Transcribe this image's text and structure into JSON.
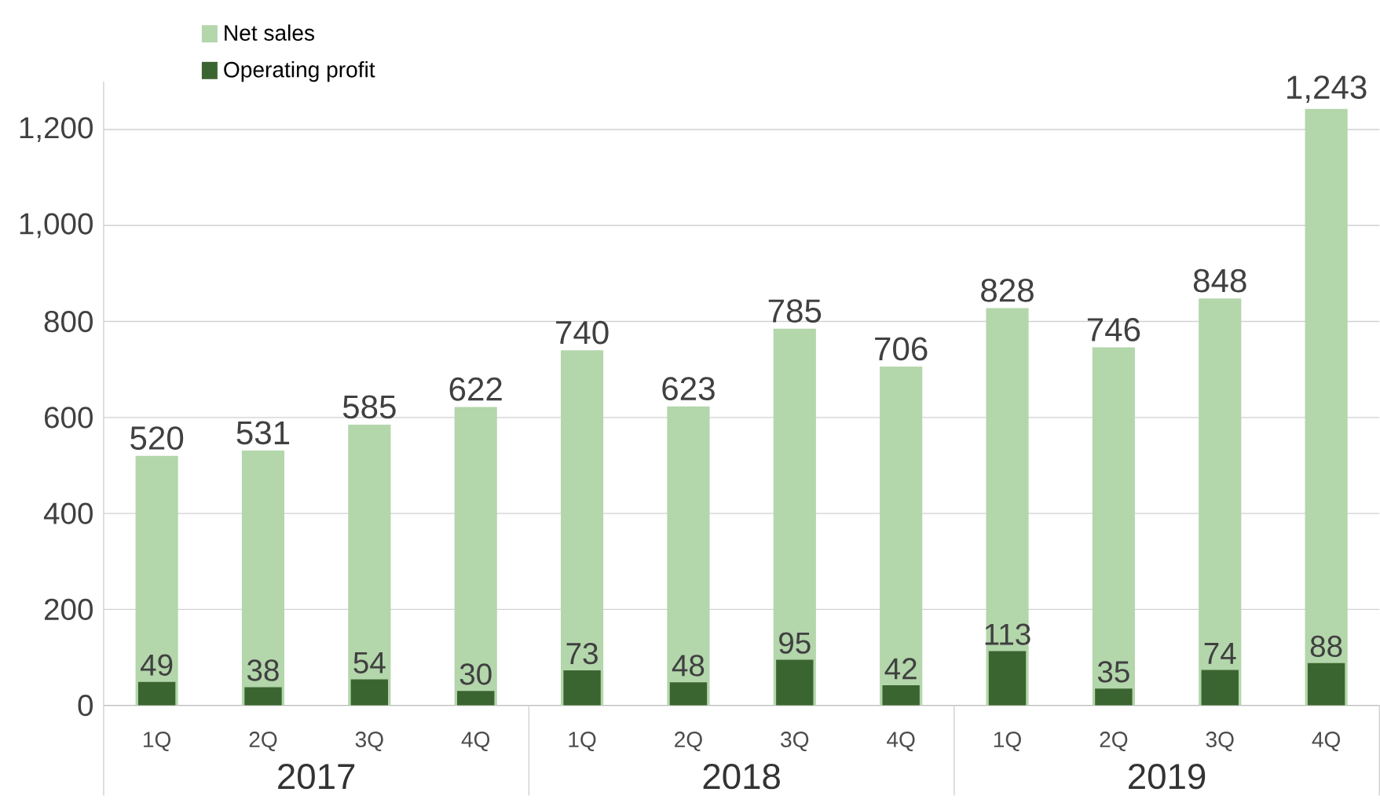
{
  "chart_data": {
    "type": "bar",
    "categories": [
      "1Q",
      "2Q",
      "3Q",
      "4Q",
      "1Q",
      "2Q",
      "3Q",
      "4Q",
      "1Q",
      "2Q",
      "3Q",
      "4Q"
    ],
    "series": [
      {
        "name": "Net sales",
        "color": "#b3d6ab",
        "values": [
          520,
          531,
          585,
          622,
          740,
          623,
          785,
          706,
          828,
          746,
          848,
          1243
        ],
        "value_labels": [
          "520",
          "531",
          "585",
          "622",
          "740",
          "623",
          "785",
          "706",
          "828",
          "746",
          "848",
          "1,243"
        ]
      },
      {
        "name": "Operating profit",
        "color": "#3b6530",
        "values": [
          49,
          38,
          54,
          30,
          73,
          48,
          95,
          42,
          113,
          35,
          74,
          88
        ],
        "value_labels": [
          "49",
          "38",
          "54",
          "30",
          "73",
          "48",
          "95",
          "42",
          "113",
          "35",
          "74",
          "88"
        ]
      }
    ],
    "annotations": [
      "2017",
      "2018",
      "2019"
    ],
    "ylim": [
      0,
      1300
    ],
    "yticks": [
      0,
      200,
      400,
      600,
      800,
      {
        "value": 1000,
        "label": "1,000"
      },
      {
        "value": 1200,
        "label": "1,200"
      }
    ],
    "grid": "y",
    "legend": "top left"
  }
}
